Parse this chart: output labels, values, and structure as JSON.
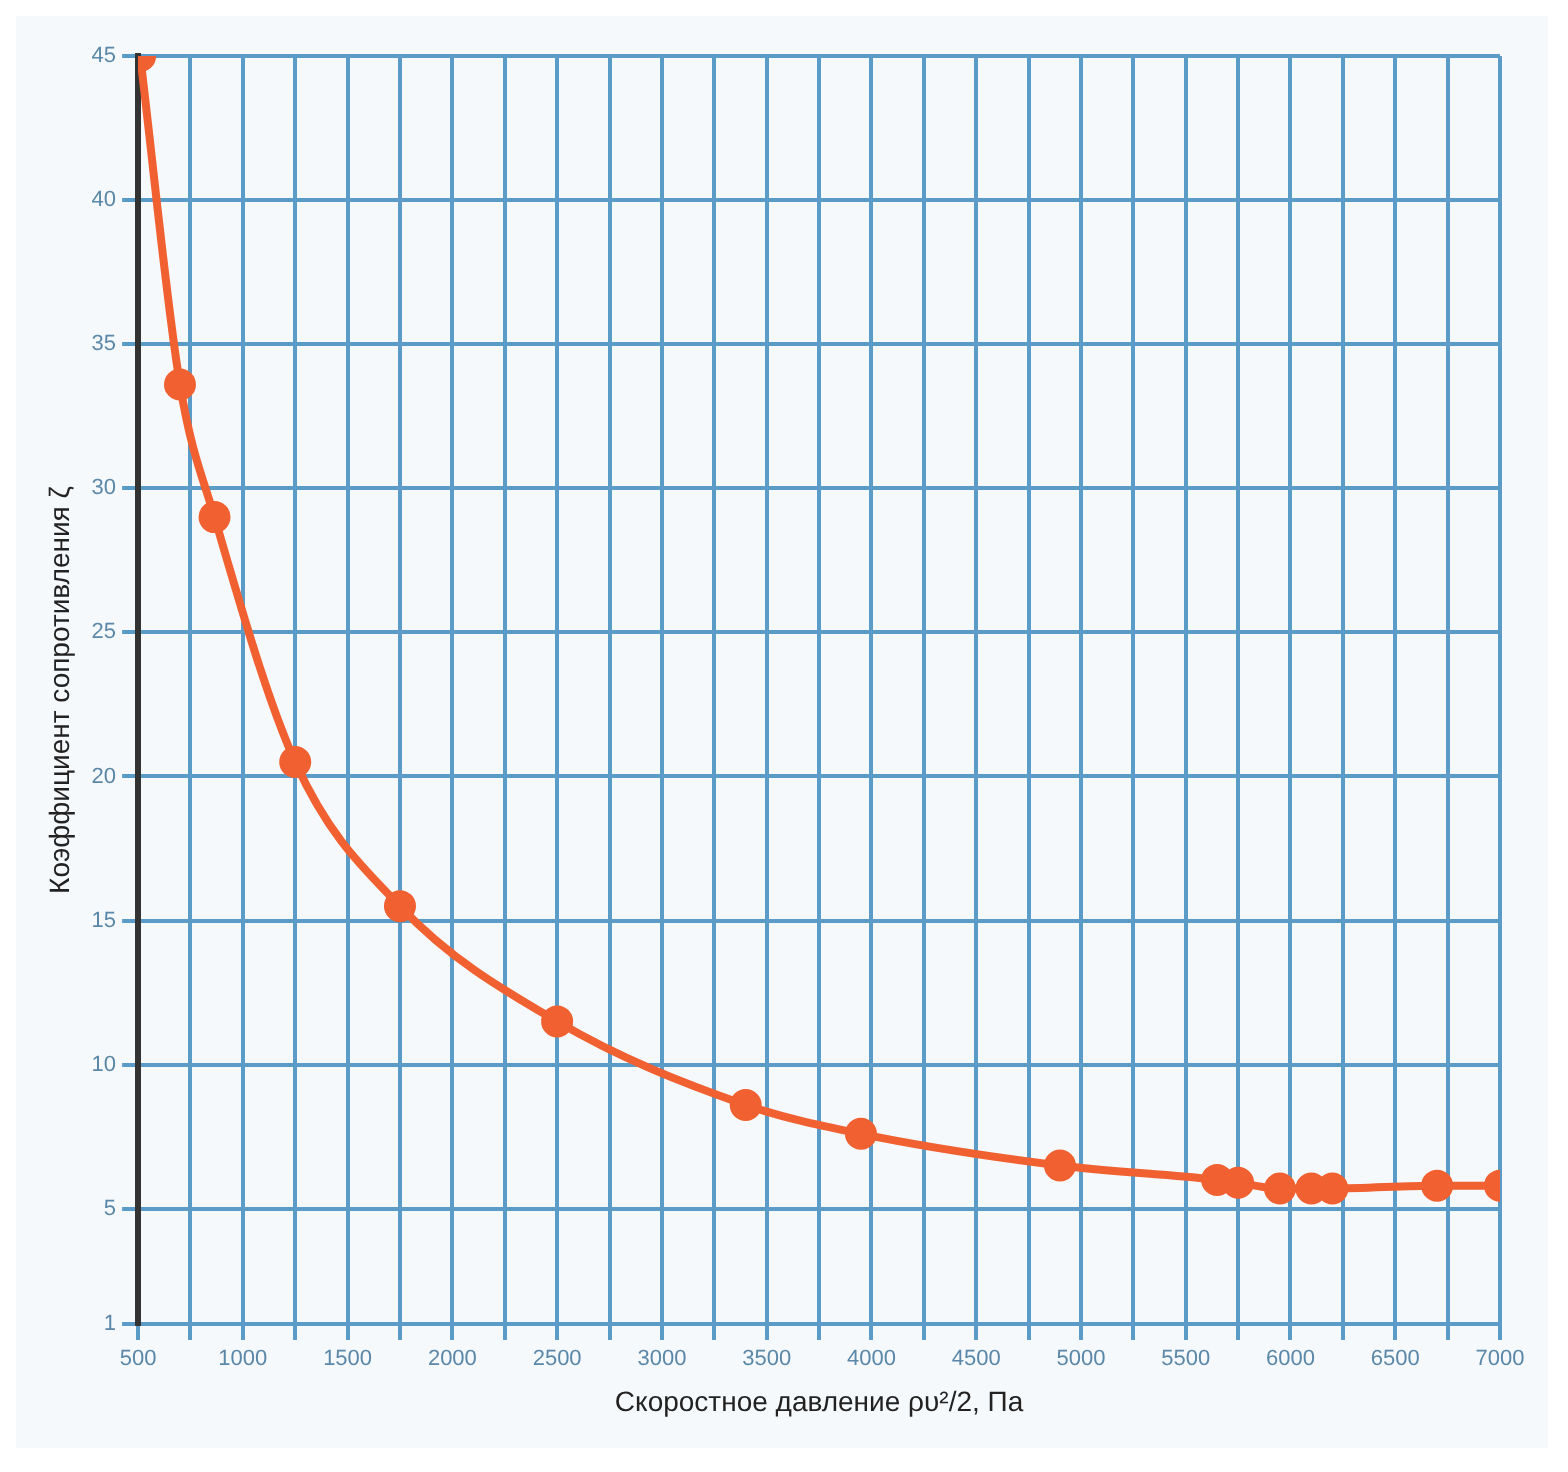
{
  "chart_data": {
    "type": "line",
    "xlabel": "Скоростное давление ρυ²/2, Па",
    "ylabel": "Коэффициент сопротивления ζ",
    "xlim": [
      500,
      7000
    ],
    "xticks": [
      500,
      {
        "value": 750,
        "label": null
      },
      1000,
      {
        "value": 1250,
        "label": null
      },
      1500,
      {
        "value": 1750,
        "label": null
      },
      2000,
      {
        "value": 2250,
        "label": null
      },
      2500,
      {
        "value": 2750,
        "label": null
      },
      3000,
      {
        "value": 3250,
        "label": null
      },
      3500,
      {
        "value": 3750,
        "label": null
      },
      4000,
      {
        "value": 4250,
        "label": null
      },
      4500,
      {
        "value": 4750,
        "label": null
      },
      5000,
      {
        "value": 5250,
        "label": null
      },
      5500,
      {
        "value": 5750,
        "label": null
      },
      6000,
      {
        "value": 6250,
        "label": null
      },
      6500,
      {
        "value": 6750,
        "label": null
      },
      7000
    ],
    "ylim": [
      1,
      45
    ],
    "yticks": [
      1,
      5,
      10,
      15,
      20,
      25,
      30,
      35,
      40,
      45
    ],
    "grid": true,
    "marker": "circle",
    "line_style": "solid",
    "series": [
      {
        "color": "#f06030",
        "x": [
          510,
          700,
          865,
          1250,
          1750,
          2500,
          3400,
          3950,
          4900,
          5650,
          5750,
          5950,
          6100,
          6200,
          6700,
          7000
        ],
        "values": [
          45,
          33.6,
          29,
          20.5,
          15.5,
          11.5,
          8.6,
          7.6,
          6.5,
          6.0,
          5.9,
          5.7,
          5.7,
          5.7,
          5.8,
          5.8
        ]
      }
    ]
  }
}
